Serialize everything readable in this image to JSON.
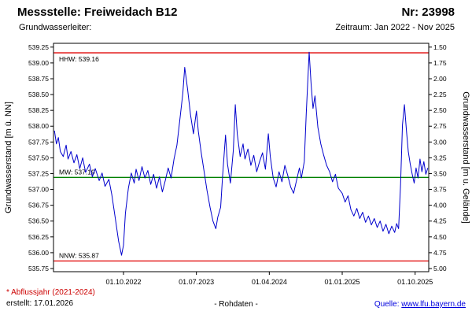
{
  "header": {
    "station_label": "Messstelle: Freiweidach B12",
    "number_label": "Nr: 23998",
    "aquifer_label": "Grundwasserleiter:",
    "period_label": "Zeitraum: Jan 2022 - Nov 2025"
  },
  "footer": {
    "note": "* Abflussjahr (2021-2024)",
    "created": "erstellt: 17.01.2026",
    "data_type": "- Rohdaten -",
    "source_label": "Quelle: ",
    "source_link": "www.lfu.bayern.de"
  },
  "colors": {
    "series": "#0000cd",
    "reference_high_low": "#e00000",
    "reference_mean": "#008000",
    "link": "#0000dd",
    "note": "#cc0000"
  },
  "chart_data": {
    "type": "line",
    "title": "",
    "ylabel_left": "Grundwasserstand [m ü. NN]",
    "ylabel_right": "Grundwasserstand [m u. Gelände]",
    "ylim_left": [
      535.7,
      539.31
    ],
    "xlim": [
      2022.03,
      2025.89
    ],
    "grid": false,
    "legend": "none",
    "ground_elevation": 540.75,
    "yticks_left": [
      {
        "v": 539.25,
        "label": "539.25"
      },
      {
        "v": 539.0,
        "label": "539.00"
      },
      {
        "v": 538.75,
        "label": "538.75"
      },
      {
        "v": 538.5,
        "label": "538.50"
      },
      {
        "v": 538.25,
        "label": "538.25"
      },
      {
        "v": 538.0,
        "label": "538.00"
      },
      {
        "v": 537.75,
        "label": "537.75"
      },
      {
        "v": 537.5,
        "label": "537.50"
      },
      {
        "v": 537.25,
        "label": "537.25"
      },
      {
        "v": 537.0,
        "label": "537.00"
      },
      {
        "v": 536.75,
        "label": "536.75"
      },
      {
        "v": 536.5,
        "label": "536.50"
      },
      {
        "v": 536.25,
        "label": "536.25"
      },
      {
        "v": 536.0,
        "label": "536.00"
      },
      {
        "v": 535.75,
        "label": "535.75"
      }
    ],
    "yticks_right": [
      {
        "v": 1.5,
        "label": "1.50"
      },
      {
        "v": 1.75,
        "label": "1.75"
      },
      {
        "v": 2.0,
        "label": "2.00"
      },
      {
        "v": 2.25,
        "label": "2.25"
      },
      {
        "v": 2.5,
        "label": "2.50"
      },
      {
        "v": 2.75,
        "label": "2.75"
      },
      {
        "v": 3.0,
        "label": "3.00"
      },
      {
        "v": 3.25,
        "label": "3.25"
      },
      {
        "v": 3.5,
        "label": "3.50"
      },
      {
        "v": 3.75,
        "label": "3.75"
      },
      {
        "v": 4.0,
        "label": "4.00"
      },
      {
        "v": 4.25,
        "label": "4.25"
      },
      {
        "v": 4.5,
        "label": "4.50"
      },
      {
        "v": 4.75,
        "label": "4.75"
      },
      {
        "v": 5.0,
        "label": "5.00"
      }
    ],
    "xticks": [
      {
        "t": 2022.75,
        "label": "01.10.2022"
      },
      {
        "t": 2023.5,
        "label": "01.07.2023"
      },
      {
        "t": 2024.25,
        "label": "01.04.2024"
      },
      {
        "t": 2025.0,
        "label": "01.01.2025"
      },
      {
        "t": 2025.75,
        "label": "01.10.2025"
      }
    ],
    "reference_lines": [
      {
        "name": "HHW",
        "label": "HHW: 539.16",
        "value": 539.16,
        "color": "#e00000",
        "label_position": "below"
      },
      {
        "name": "MW",
        "label": "MW: 537.19",
        "value": 537.19,
        "color": "#008000",
        "label_position": "above"
      },
      {
        "name": "NNW",
        "label": "NNW: 535.87",
        "value": 535.87,
        "color": "#e00000",
        "label_position": "above"
      }
    ],
    "series": [
      {
        "name": "Grundwasserstand Rohdaten",
        "color": "#0000cd",
        "points": [
          [
            2022.04,
            537.93
          ],
          [
            2022.06,
            537.72
          ],
          [
            2022.08,
            537.82
          ],
          [
            2022.1,
            537.6
          ],
          [
            2022.13,
            537.52
          ],
          [
            2022.16,
            537.7
          ],
          [
            2022.18,
            537.48
          ],
          [
            2022.21,
            537.6
          ],
          [
            2022.24,
            537.42
          ],
          [
            2022.27,
            537.55
          ],
          [
            2022.3,
            537.33
          ],
          [
            2022.33,
            537.5
          ],
          [
            2022.36,
            537.27
          ],
          [
            2022.4,
            537.4
          ],
          [
            2022.43,
            537.2
          ],
          [
            2022.46,
            537.33
          ],
          [
            2022.5,
            537.14
          ],
          [
            2022.53,
            537.26
          ],
          [
            2022.56,
            537.05
          ],
          [
            2022.6,
            537.16
          ],
          [
            2022.63,
            536.92
          ],
          [
            2022.66,
            536.6
          ],
          [
            2022.7,
            536.18
          ],
          [
            2022.73,
            535.96
          ],
          [
            2022.75,
            536.12
          ],
          [
            2022.77,
            536.62
          ],
          [
            2022.8,
            537.02
          ],
          [
            2022.83,
            537.26
          ],
          [
            2022.86,
            537.1
          ],
          [
            2022.88,
            537.32
          ],
          [
            2022.91,
            537.14
          ],
          [
            2022.94,
            537.36
          ],
          [
            2022.97,
            537.18
          ],
          [
            2023.0,
            537.3
          ],
          [
            2023.03,
            537.08
          ],
          [
            2023.06,
            537.24
          ],
          [
            2023.09,
            537.02
          ],
          [
            2023.12,
            537.2
          ],
          [
            2023.15,
            536.96
          ],
          [
            2023.18,
            537.14
          ],
          [
            2023.21,
            537.34
          ],
          [
            2023.24,
            537.18
          ],
          [
            2023.27,
            537.48
          ],
          [
            2023.3,
            537.7
          ],
          [
            2023.33,
            538.1
          ],
          [
            2023.36,
            538.52
          ],
          [
            2023.38,
            538.93
          ],
          [
            2023.41,
            538.58
          ],
          [
            2023.44,
            538.18
          ],
          [
            2023.47,
            537.88
          ],
          [
            2023.5,
            538.24
          ],
          [
            2023.52,
            537.92
          ],
          [
            2023.55,
            537.58
          ],
          [
            2023.58,
            537.28
          ],
          [
            2023.61,
            536.98
          ],
          [
            2023.64,
            536.72
          ],
          [
            2023.67,
            536.5
          ],
          [
            2023.7,
            536.38
          ],
          [
            2023.72,
            536.56
          ],
          [
            2023.75,
            536.72
          ],
          [
            2023.77,
            537.22
          ],
          [
            2023.8,
            537.86
          ],
          [
            2023.82,
            537.4
          ],
          [
            2023.85,
            537.1
          ],
          [
            2023.88,
            537.62
          ],
          [
            2023.9,
            538.34
          ],
          [
            2023.92,
            537.88
          ],
          [
            2023.95,
            537.52
          ],
          [
            2023.98,
            537.72
          ],
          [
            2024.0,
            537.48
          ],
          [
            2024.03,
            537.64
          ],
          [
            2024.06,
            537.38
          ],
          [
            2024.09,
            537.54
          ],
          [
            2024.12,
            537.28
          ],
          [
            2024.15,
            537.44
          ],
          [
            2024.18,
            537.58
          ],
          [
            2024.21,
            537.32
          ],
          [
            2024.24,
            537.88
          ],
          [
            2024.26,
            537.52
          ],
          [
            2024.29,
            537.18
          ],
          [
            2024.32,
            537.04
          ],
          [
            2024.35,
            537.28
          ],
          [
            2024.38,
            537.12
          ],
          [
            2024.41,
            537.38
          ],
          [
            2024.44,
            537.22
          ],
          [
            2024.47,
            537.04
          ],
          [
            2024.5,
            536.94
          ],
          [
            2024.53,
            537.14
          ],
          [
            2024.56,
            537.34
          ],
          [
            2024.58,
            537.18
          ],
          [
            2024.61,
            537.44
          ],
          [
            2024.63,
            538.2
          ],
          [
            2024.66,
            539.17
          ],
          [
            2024.68,
            538.66
          ],
          [
            2024.7,
            538.28
          ],
          [
            2024.72,
            538.48
          ],
          [
            2024.75,
            537.98
          ],
          [
            2024.78,
            537.72
          ],
          [
            2024.81,
            537.54
          ],
          [
            2024.84,
            537.38
          ],
          [
            2024.87,
            537.28
          ],
          [
            2024.9,
            537.12
          ],
          [
            2024.93,
            537.24
          ],
          [
            2024.96,
            537.02
          ],
          [
            2025.0,
            536.94
          ],
          [
            2025.03,
            536.8
          ],
          [
            2025.06,
            536.9
          ],
          [
            2025.09,
            536.68
          ],
          [
            2025.12,
            536.58
          ],
          [
            2025.15,
            536.7
          ],
          [
            2025.18,
            536.54
          ],
          [
            2025.21,
            536.64
          ],
          [
            2025.24,
            536.48
          ],
          [
            2025.27,
            536.58
          ],
          [
            2025.3,
            536.44
          ],
          [
            2025.33,
            536.54
          ],
          [
            2025.36,
            536.4
          ],
          [
            2025.39,
            536.5
          ],
          [
            2025.42,
            536.34
          ],
          [
            2025.45,
            536.45
          ],
          [
            2025.48,
            536.3
          ],
          [
            2025.51,
            536.42
          ],
          [
            2025.54,
            536.32
          ],
          [
            2025.56,
            536.46
          ],
          [
            2025.58,
            536.38
          ],
          [
            2025.6,
            537.08
          ],
          [
            2025.62,
            538.02
          ],
          [
            2025.64,
            538.34
          ],
          [
            2025.66,
            537.94
          ],
          [
            2025.68,
            537.6
          ],
          [
            2025.7,
            537.4
          ],
          [
            2025.72,
            537.24
          ],
          [
            2025.74,
            537.1
          ],
          [
            2025.76,
            537.34
          ],
          [
            2025.78,
            537.18
          ],
          [
            2025.8,
            537.48
          ],
          [
            2025.82,
            537.28
          ],
          [
            2025.84,
            537.44
          ],
          [
            2025.86,
            537.24
          ],
          [
            2025.88,
            537.34
          ]
        ]
      }
    ]
  }
}
